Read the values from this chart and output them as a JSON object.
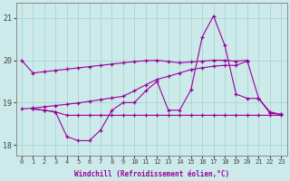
{
  "xlabel": "Windchill (Refroidissement éolien,°C)",
  "background_color": "#cceaea",
  "grid_color": "#aad4d4",
  "line_color": "#990099",
  "ylim": [
    17.75,
    21.35
  ],
  "yticks": [
    18,
    19,
    20,
    21
  ],
  "xlim": [
    -0.5,
    23.5
  ],
  "s1_x": [
    0,
    1,
    2,
    3,
    4,
    5,
    6,
    7,
    8,
    9,
    10,
    11,
    12,
    13,
    14,
    15,
    16,
    17,
    18,
    19,
    20
  ],
  "s1_y": [
    20.0,
    19.7,
    19.73,
    19.76,
    19.79,
    19.82,
    19.85,
    19.88,
    19.91,
    19.94,
    19.97,
    19.99,
    20.0,
    19.97,
    19.94,
    19.96,
    19.98,
    20.0,
    20.0,
    19.98,
    20.0
  ],
  "s2_x": [
    1,
    2,
    3,
    4,
    5,
    6,
    7,
    8,
    9,
    10,
    11,
    12,
    13,
    14,
    15,
    16,
    17,
    18,
    19,
    20,
    21,
    22,
    23
  ],
  "s2_y": [
    18.85,
    18.82,
    18.78,
    18.2,
    18.1,
    18.1,
    18.35,
    18.82,
    19.0,
    19.0,
    19.28,
    19.5,
    18.82,
    18.82,
    19.3,
    20.55,
    21.05,
    20.35,
    19.2,
    19.1,
    19.1,
    18.75,
    18.72
  ],
  "s3_x": [
    1,
    2,
    3,
    4,
    5,
    6,
    7,
    8,
    9,
    10,
    11,
    12,
    13,
    14,
    15,
    16,
    17,
    18,
    19,
    20,
    21,
    22,
    23
  ],
  "s3_y": [
    18.85,
    18.82,
    18.78,
    18.7,
    18.7,
    18.7,
    18.7,
    18.7,
    18.7,
    18.7,
    18.7,
    18.7,
    18.7,
    18.7,
    18.7,
    18.7,
    18.7,
    18.7,
    18.7,
    18.7,
    18.7,
    18.7,
    18.7
  ],
  "s4_x": [
    0,
    1,
    2,
    3,
    4,
    5,
    6,
    7,
    8,
    9,
    10,
    11,
    12,
    13,
    14,
    15,
    16,
    17,
    18,
    19,
    20,
    21,
    22,
    23
  ],
  "s4_y": [
    18.85,
    18.87,
    18.9,
    18.93,
    18.96,
    18.99,
    19.03,
    19.07,
    19.11,
    19.15,
    19.28,
    19.42,
    19.55,
    19.62,
    19.7,
    19.78,
    19.82,
    19.86,
    19.88,
    19.88,
    19.98,
    19.1,
    18.78,
    18.72
  ]
}
